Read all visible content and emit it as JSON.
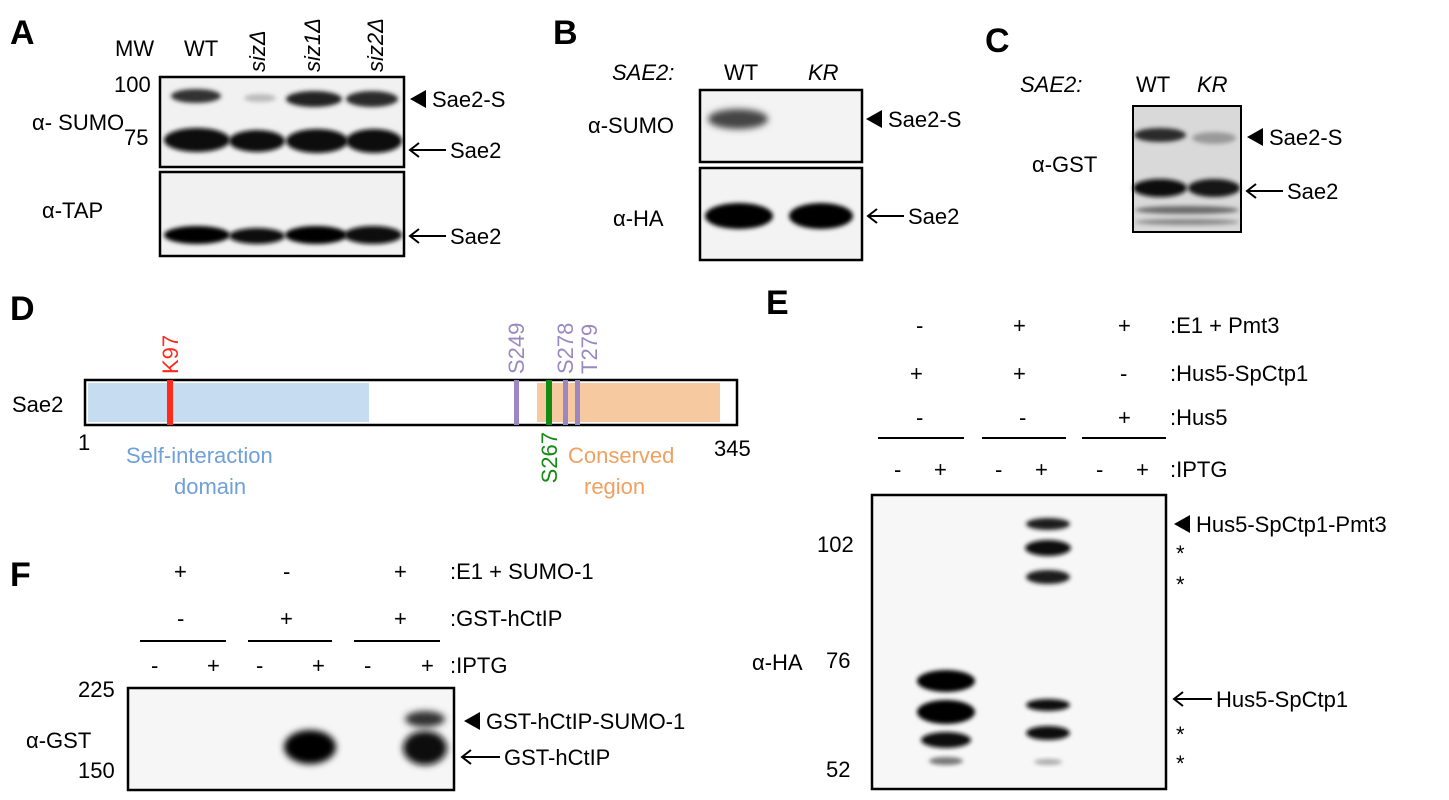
{
  "panel_a": {
    "letter": "A",
    "mw_header": "MW",
    "mw_100": "100",
    "mw_75": "75",
    "lanes": [
      "WT",
      "sizΔ",
      "siz1Δ",
      "siz2Δ"
    ],
    "blot_top_label": "α- SUMO",
    "blot_bottom_label": "α-TAP",
    "band_sumo": "Sae2-S",
    "band_sae2_top": "Sae2",
    "band_sae2_bottom": "Sae2"
  },
  "panel_b": {
    "letter": "B",
    "genotype_label": "SAE2:",
    "lanes": [
      "WT",
      "KR"
    ],
    "blot_top_label": "α-SUMO",
    "blot_bottom_label": "α-HA",
    "band_sumo": "Sae2-S",
    "band_sae2": "Sae2"
  },
  "panel_c": {
    "letter": "C",
    "genotype_label": "SAE2:",
    "lanes": [
      "WT",
      "KR"
    ],
    "blot_label": "α-GST",
    "band_sumo": "Sae2-S",
    "band_sae2": "Sae2"
  },
  "panel_d": {
    "letter": "D",
    "protein": "Sae2",
    "start": "1",
    "end": "345",
    "sites_top": [
      "K97",
      "S249",
      "S278",
      "T279"
    ],
    "site_bottom": "S267",
    "domain_self": [
      "Self-interaction",
      "domain"
    ],
    "domain_conserved": [
      "Conserved",
      "region"
    ],
    "colors": {
      "self_domain": "#c6dcf0",
      "conserved": "#f7c9a1",
      "k97": "#ff2a1a",
      "phospho": "#9b88c0",
      "s267": "#138a13",
      "self_text": "#6fa0d6",
      "conserved_text": "#f0a060"
    }
  },
  "panel_e": {
    "letter": "E",
    "rows": [
      {
        "label": ":E1 + Pmt3",
        "signs": [
          "-",
          "+",
          "+"
        ]
      },
      {
        "label": ":Hus5-SpCtp1",
        "signs": [
          "+",
          "+",
          "-"
        ]
      },
      {
        "label": ":Hus5",
        "signs": [
          "-",
          "-",
          "+"
        ]
      }
    ],
    "iptg_label": ":IPTG",
    "iptg_signs": [
      "-",
      "+",
      "-",
      "+",
      "-",
      "+"
    ],
    "blot_label": "α-HA",
    "mw": [
      "102",
      "76",
      "52"
    ],
    "band_top": "Hus5-SpCtp1-Pmt3",
    "band_bottom": "Hus5-SpCtp1",
    "star": "*"
  },
  "panel_f": {
    "letter": "F",
    "rows": [
      {
        "label": ":E1 + SUMO-1",
        "signs": [
          "+",
          "-",
          "+"
        ]
      },
      {
        "label": ":GST-hCtIP",
        "signs": [
          "-",
          "+",
          "+"
        ]
      }
    ],
    "iptg_label": ":IPTG",
    "iptg_signs": [
      "-",
      "+",
      "-",
      "+",
      "-",
      "+"
    ],
    "blot_label": "α-GST",
    "mw": [
      "225",
      "150"
    ],
    "band_top": "GST-hCtIP-SUMO-1",
    "band_bottom": "GST-hCtIP"
  }
}
